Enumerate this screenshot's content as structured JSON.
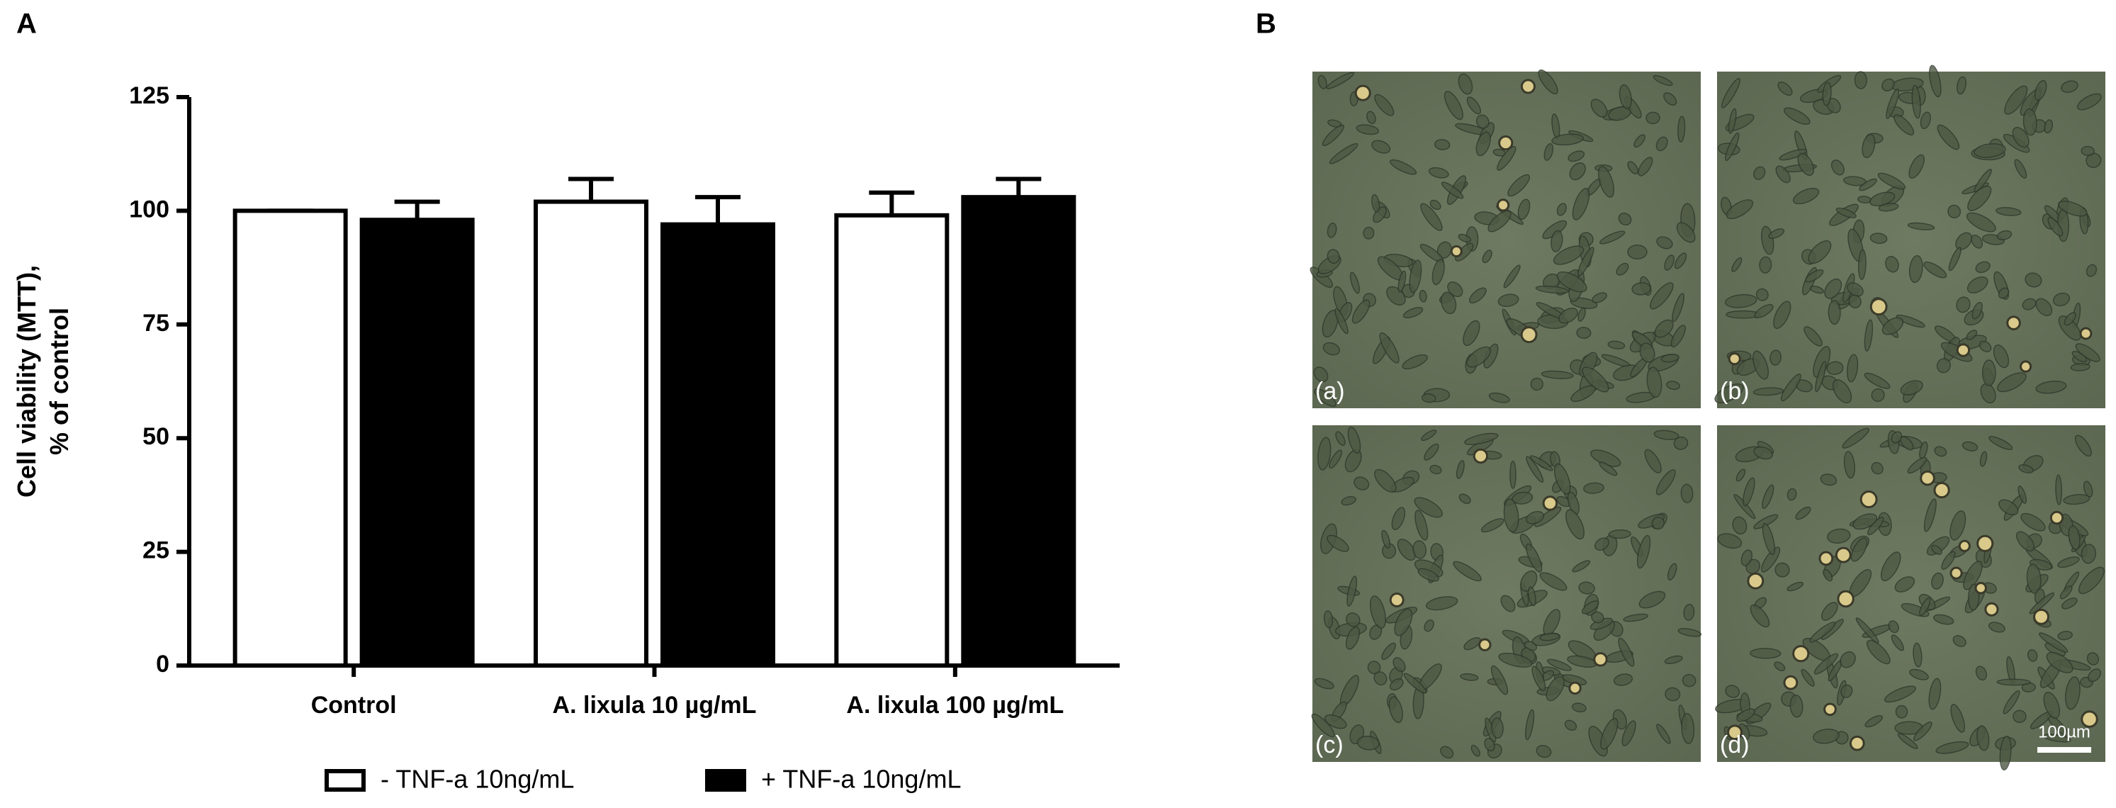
{
  "panel_labels": [
    "A",
    "B"
  ],
  "chart_data": {
    "type": "bar",
    "ylabel": [
      "Cell viability (MTT),",
      "% of control"
    ],
    "categories": [
      "Control",
      "A. lixula 10 µg/mL",
      "A. lixula 100 µg/mL"
    ],
    "series": [
      {
        "name": "- TNF-a 10ng/mL",
        "color": "#ffffff",
        "values": [
          100,
          102,
          99
        ],
        "errors": [
          0,
          5,
          5
        ]
      },
      {
        "name": "+ TNF-a 10ng/mL",
        "color": "#000000",
        "values": [
          98,
          97,
          103
        ],
        "errors": [
          4,
          6,
          4
        ]
      }
    ],
    "ylim": [
      0,
      125
    ],
    "yticks": [
      0,
      25,
      50,
      75,
      100,
      125
    ],
    "grid": false,
    "legend": "bottom"
  },
  "micrographs": {
    "labels": [
      "(a)",
      "(b)",
      "(c)",
      "(d)"
    ],
    "scale_bar": "100µm"
  }
}
